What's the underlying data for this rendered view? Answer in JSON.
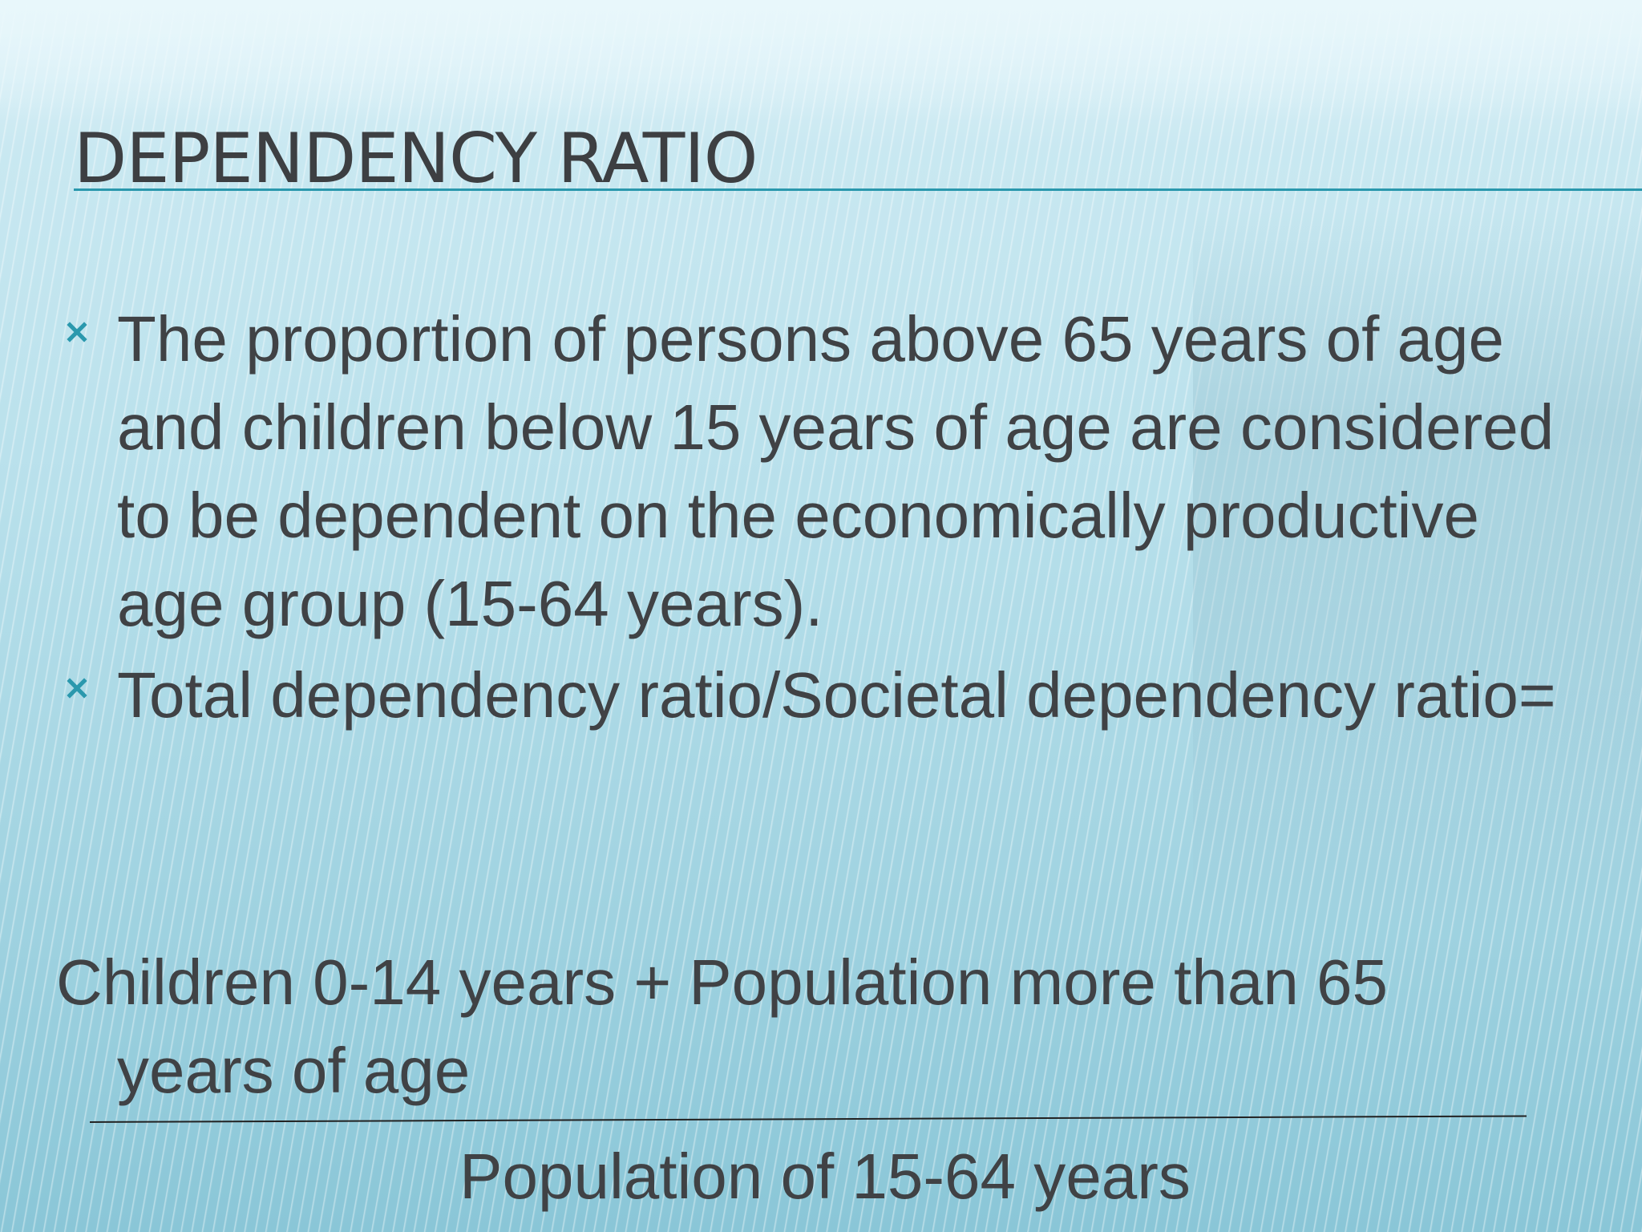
{
  "slide": {
    "title": "DEPENDENCY RATIO",
    "bullets": [
      {
        "icon": "x-mark-icon",
        "text": "The proportion of persons above 65 years of age and children below 15 years of age are considered to be dependent on the economically productive age group (15-64 years)."
      },
      {
        "icon": "x-mark-icon",
        "text": "Total dependency ratio/Societal dependency ratio="
      }
    ],
    "formula": {
      "numerator_line1": "Children 0-14 years + Population more than 65",
      "numerator_line2": "years of age",
      "denominator": "Population of 15-64 years"
    },
    "colors": {
      "accent": "#2a98ad",
      "text": "#404245"
    }
  }
}
